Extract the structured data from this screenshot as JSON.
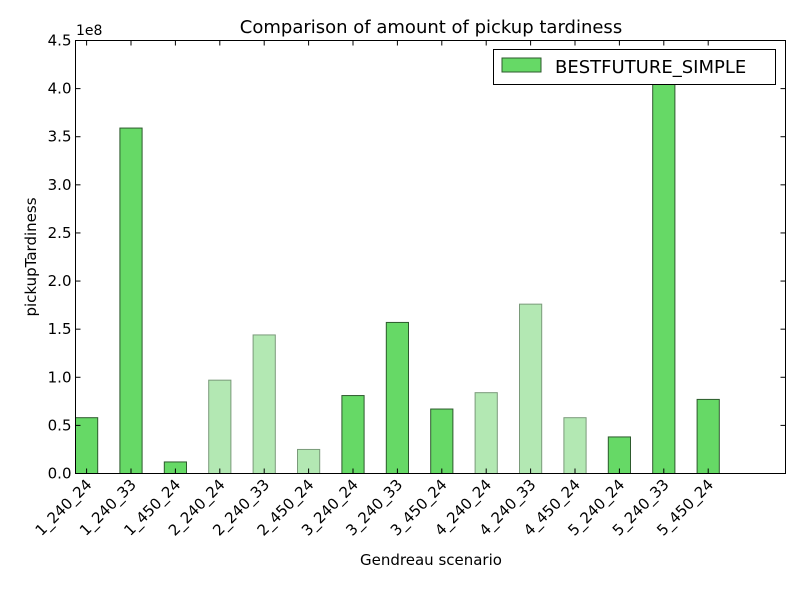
{
  "chart_data": {
    "type": "bar",
    "title": "Comparison of amount of pickup tardiness",
    "xlabel": "Gendreau scenario",
    "ylabel": "pickupTardiness",
    "y_scale_label": "1e8",
    "y_scale": 100000000,
    "ylim": [
      0,
      4.5
    ],
    "yticks": [
      "0.0",
      "0.5",
      "1.0",
      "1.5",
      "2.0",
      "2.5",
      "3.0",
      "3.5",
      "4.0",
      "4.5"
    ],
    "grid": false,
    "legend_position": "top-right",
    "categories": [
      "1_240_24",
      "1_240_33",
      "1_450_24",
      "2_240_24",
      "2_240_33",
      "2_450_24",
      "3_240_24",
      "3_240_33",
      "3_450_24",
      "4_240_24",
      "4_240_33",
      "4_450_24",
      "5_240_24",
      "5_240_33",
      "5_450_24"
    ],
    "series": [
      {
        "name": "BESTFUTURE_SIMPLE",
        "color": "#66d966",
        "light_color": "#b3e8b3",
        "values": [
          0.58,
          3.59,
          0.12,
          0.97,
          1.44,
          0.25,
          0.81,
          1.57,
          0.67,
          0.84,
          1.76,
          0.58,
          0.38,
          4.05,
          0.77
        ],
        "shade": [
          "dark",
          "dark",
          "dark",
          "light",
          "light",
          "light",
          "dark",
          "dark",
          "dark",
          "light",
          "light",
          "light",
          "dark",
          "dark",
          "dark"
        ]
      }
    ]
  }
}
